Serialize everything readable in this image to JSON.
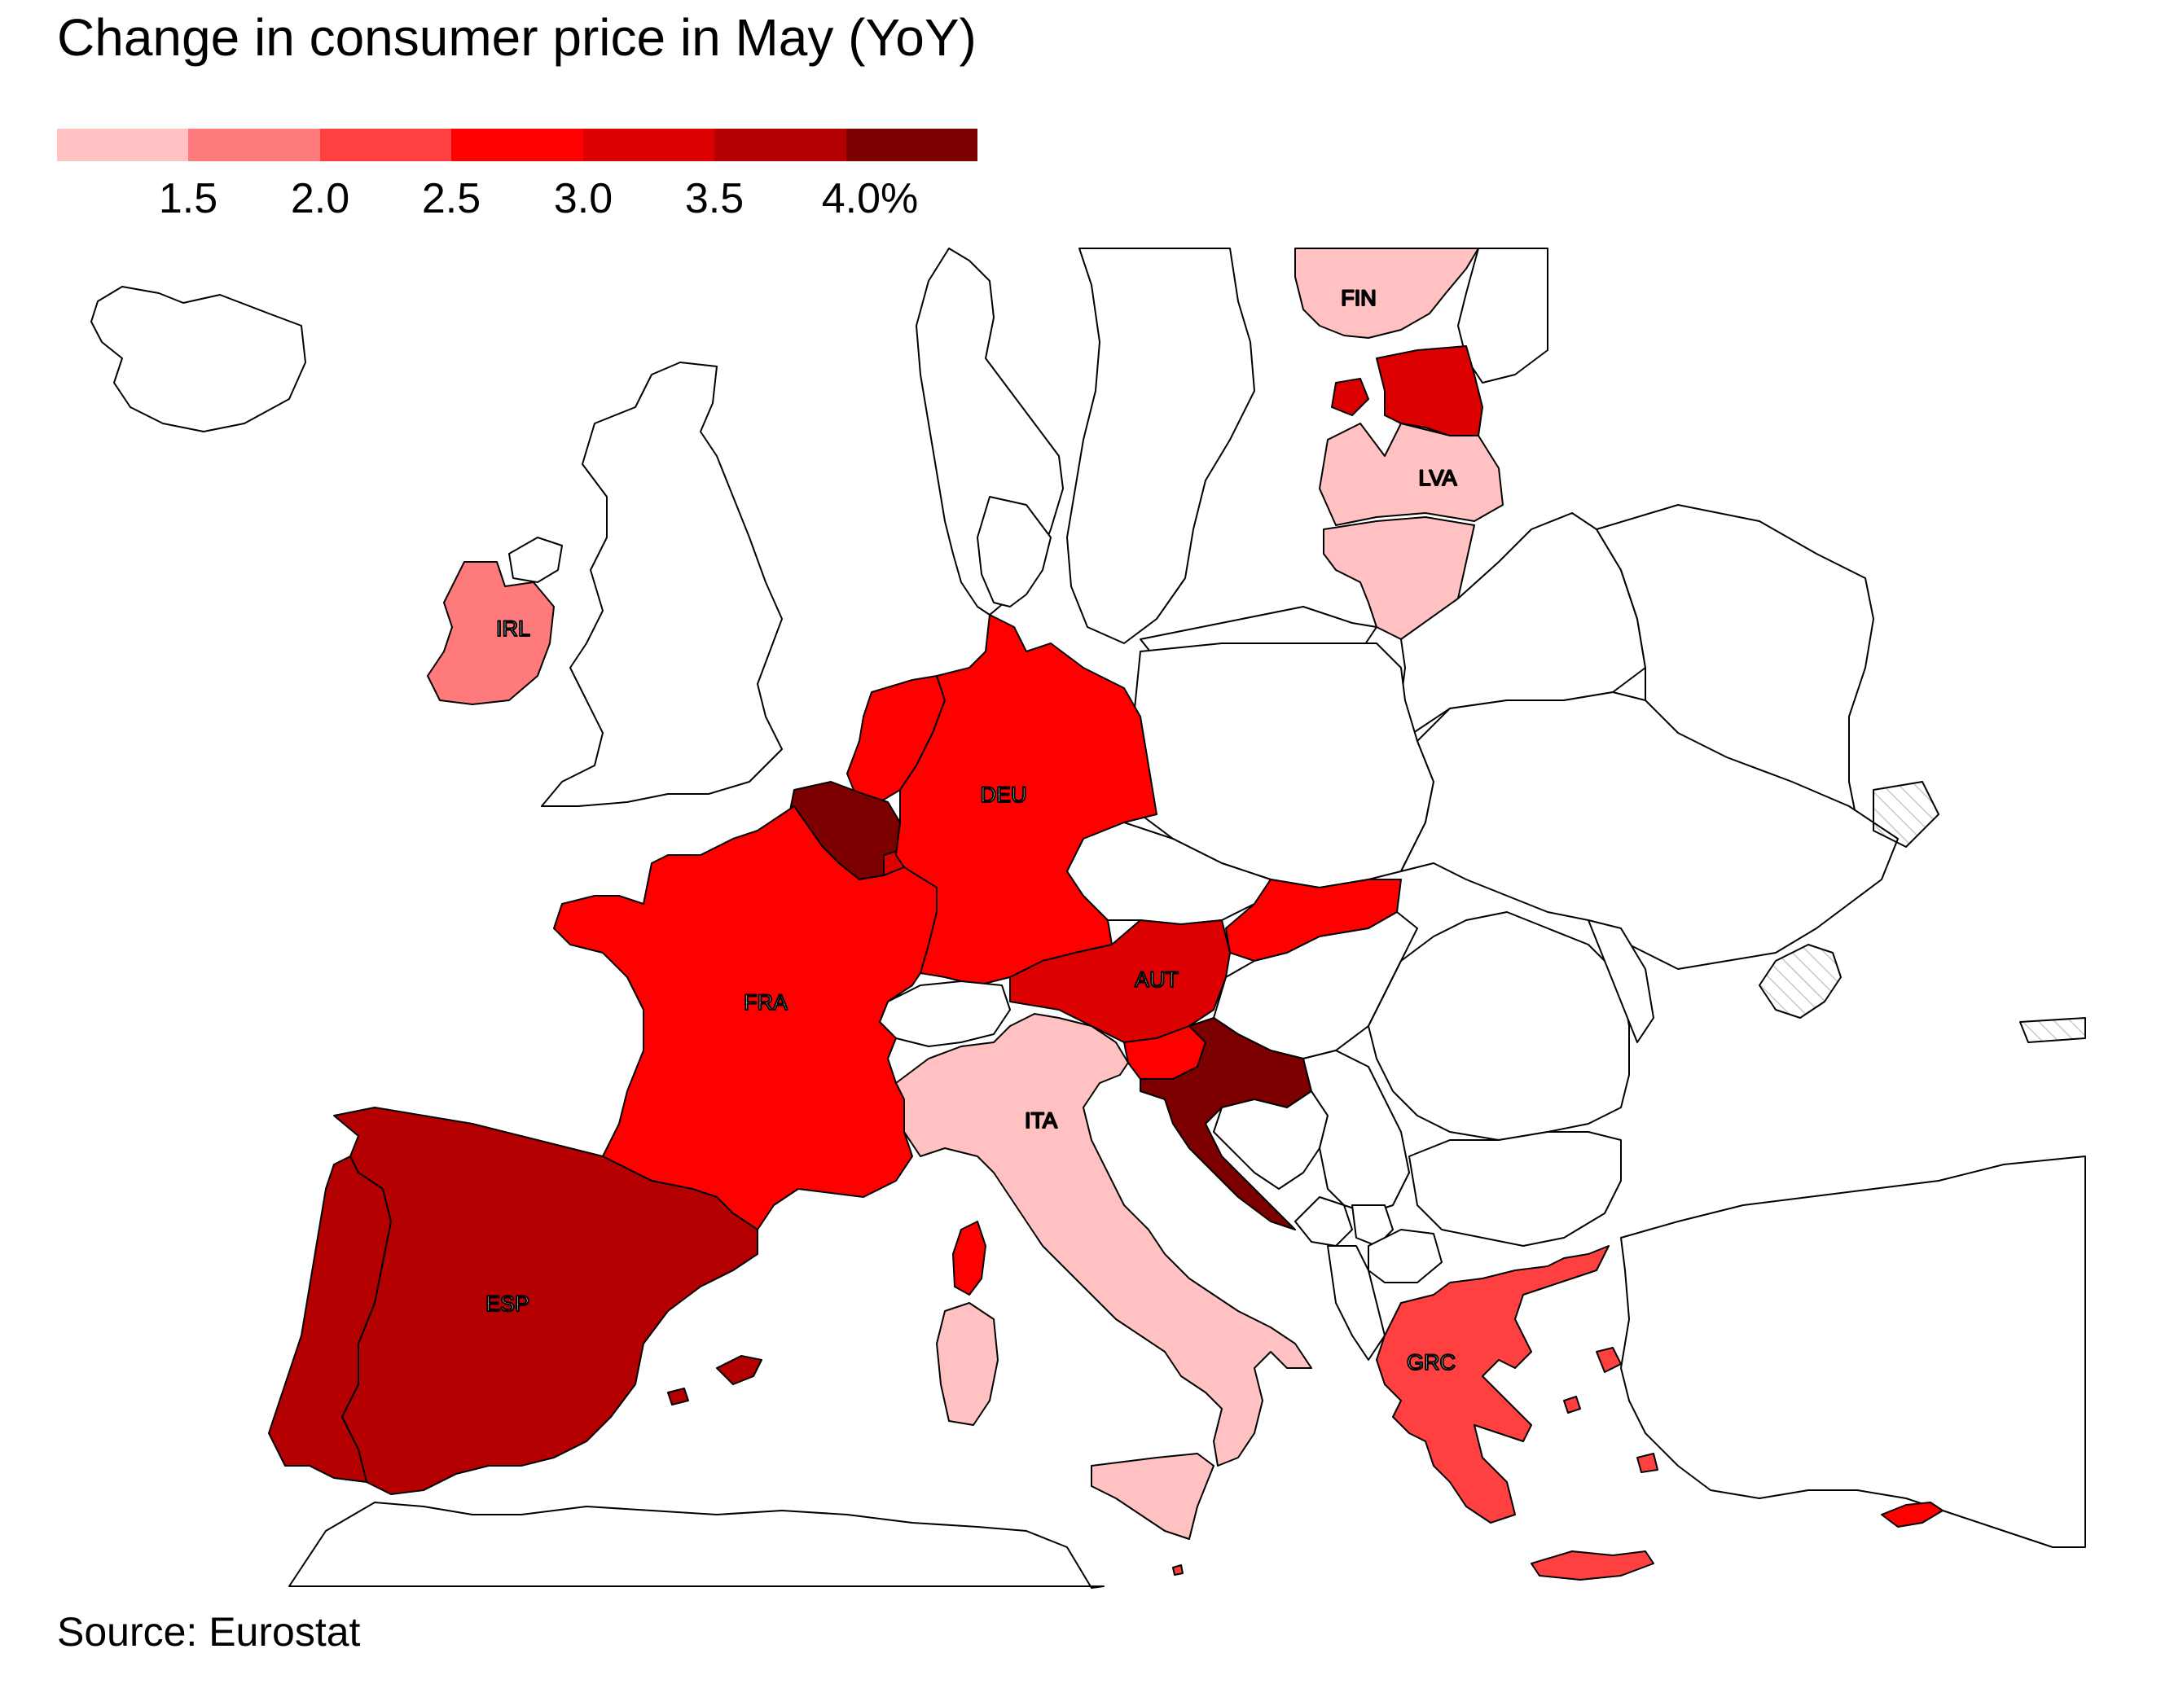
{
  "title": "Change in consumer price in May (YoY)",
  "source": "Source: Eurostat",
  "legend": {
    "colors": [
      "#ffc1c1",
      "#ff7b7b",
      "#ff4040",
      "#ff0000",
      "#dc0000",
      "#b40000",
      "#7d0000"
    ],
    "labels": [
      "1.5",
      "2.0",
      "2.5",
      "3.0",
      "3.5",
      "4.0%"
    ]
  },
  "colors": {
    "no_data": "#ffffff",
    "no_data_hatch": "#c8c8c8",
    "outline": "#000000",
    "label_dark": "#000000",
    "label_light": "#ffffff"
  },
  "countries": [
    {
      "code": "FIN",
      "bucket": 0,
      "label": "FIN"
    },
    {
      "code": "EST",
      "bucket": 4,
      "label": ""
    },
    {
      "code": "LVA",
      "bucket": 0,
      "label": "LVA"
    },
    {
      "code": "LTU",
      "bucket": 0,
      "label": ""
    },
    {
      "code": "IRL",
      "bucket": 1,
      "label": "IRL"
    },
    {
      "code": "NLD",
      "bucket": 3,
      "label": ""
    },
    {
      "code": "BEL",
      "bucket": 6,
      "label": ""
    },
    {
      "code": "LUX",
      "bucket": 4,
      "label": ""
    },
    {
      "code": "DEU",
      "bucket": 3,
      "label": "DEU"
    },
    {
      "code": "FRA",
      "bucket": 3,
      "label": "FRA"
    },
    {
      "code": "AUT",
      "bucket": 4,
      "label": "AUT"
    },
    {
      "code": "SVK",
      "bucket": 3,
      "label": ""
    },
    {
      "code": "SVN",
      "bucket": 3,
      "label": ""
    },
    {
      "code": "HRV",
      "bucket": 6,
      "label": ""
    },
    {
      "code": "ITA",
      "bucket": 0,
      "label": "ITA"
    },
    {
      "code": "ESP",
      "bucket": 5,
      "label": "ESP"
    },
    {
      "code": "PRT",
      "bucket": 5,
      "label": ""
    },
    {
      "code": "GRC",
      "bucket": 2,
      "label": "GRC"
    },
    {
      "code": "CYP",
      "bucket": 3,
      "label": ""
    },
    {
      "code": "MLT",
      "bucket": 2,
      "label": ""
    }
  ]
}
